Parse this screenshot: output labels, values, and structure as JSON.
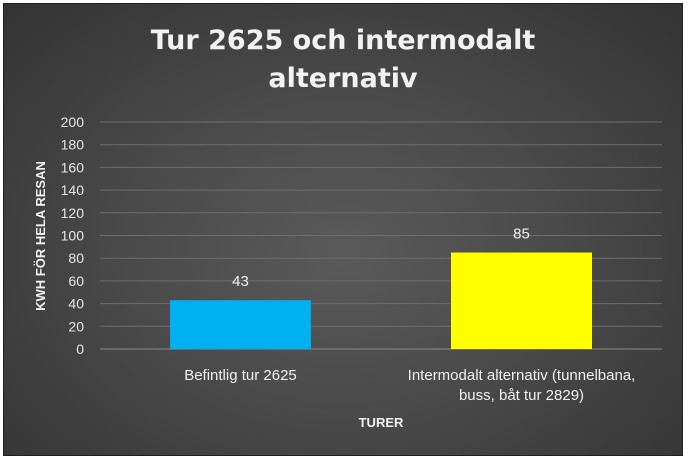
{
  "chart_data": {
    "type": "bar",
    "title_lines": [
      "Tur 2625 och intermodalt",
      "alternativ"
    ],
    "categories": [
      {
        "lines": [
          "Befintlig tur 2625"
        ]
      },
      {
        "lines": [
          "Intermodalt alternativ (tunnelbana,",
          "buss, båt tur 2829)"
        ]
      }
    ],
    "values": [
      43,
      85
    ],
    "colors": [
      "#00b0f0",
      "#ffff00"
    ],
    "xlabel": "TURER",
    "ylabel": "KWH FÖR HELA RESAN",
    "ylim": [
      0,
      200
    ],
    "yticks": [
      0,
      20,
      40,
      60,
      80,
      100,
      120,
      140,
      160,
      180,
      200
    ],
    "grid": true,
    "legend": "none",
    "background": "#3f3f3f"
  }
}
